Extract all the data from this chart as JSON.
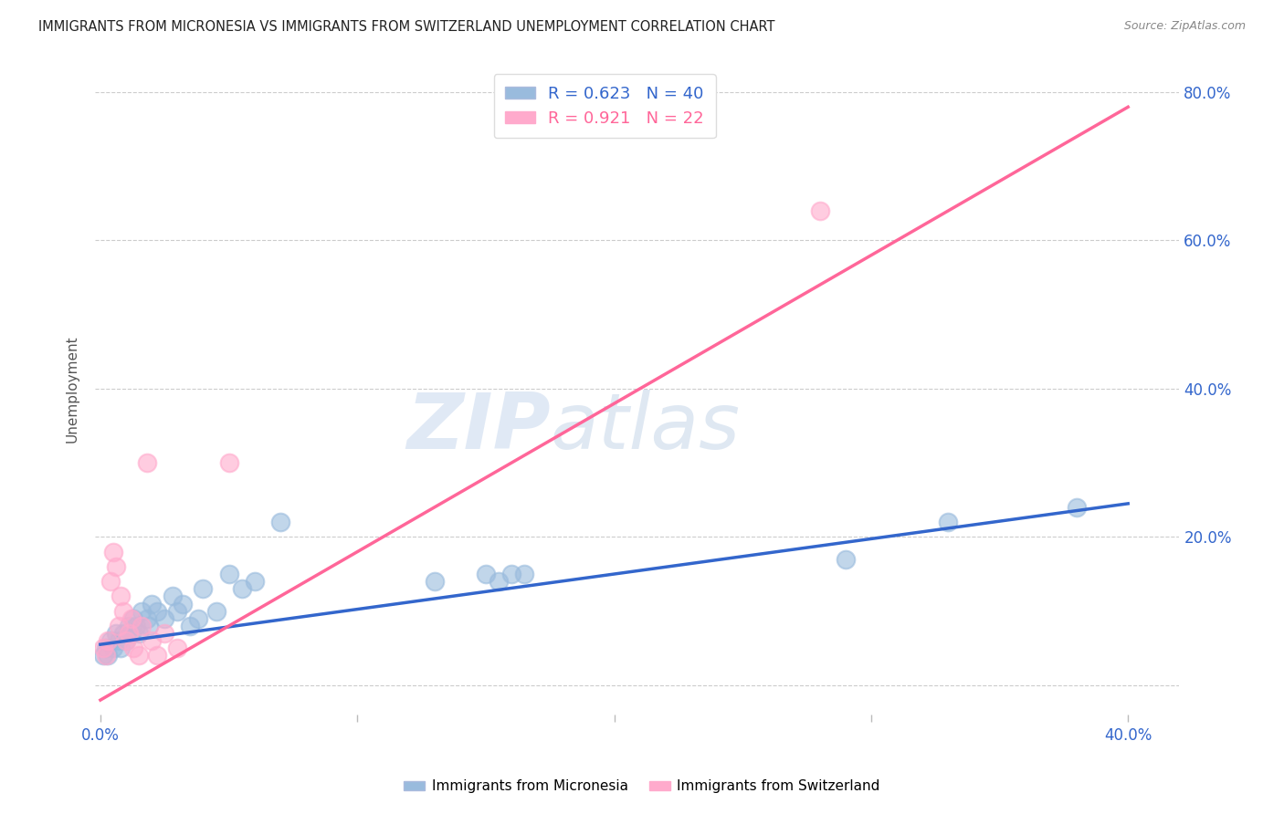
{
  "title": "IMMIGRANTS FROM MICRONESIA VS IMMIGRANTS FROM SWITZERLAND UNEMPLOYMENT CORRELATION CHART",
  "source": "Source: ZipAtlas.com",
  "ylabel": "Unemployment",
  "ytick_positions": [
    0.0,
    0.2,
    0.4,
    0.6,
    0.8
  ],
  "ytick_labels": [
    "",
    "20.0%",
    "40.0%",
    "60.0%",
    "80.0%"
  ],
  "xtick_positions": [
    0.0,
    0.1,
    0.2,
    0.3,
    0.4
  ],
  "xlim": [
    -0.002,
    0.42
  ],
  "ylim": [
    -0.04,
    0.84
  ],
  "micronesia_color": "#99BBDD",
  "switzerland_color": "#FFAACC",
  "micronesia_line_color": "#3366CC",
  "switzerland_line_color": "#FF6699",
  "R_micronesia": 0.623,
  "N_micronesia": 40,
  "R_switzerland": 0.921,
  "N_switzerland": 22,
  "legend_label_micronesia": "Immigrants from Micronesia",
  "legend_label_switzerland": "Immigrants from Switzerland",
  "watermark_zip": "ZIP",
  "watermark_atlas": "atlas",
  "background_color": "#FFFFFF",
  "micronesia_x": [
    0.001,
    0.002,
    0.003,
    0.004,
    0.005,
    0.006,
    0.007,
    0.008,
    0.009,
    0.01,
    0.011,
    0.012,
    0.013,
    0.014,
    0.015,
    0.016,
    0.018,
    0.019,
    0.02,
    0.022,
    0.025,
    0.028,
    0.03,
    0.032,
    0.035,
    0.038,
    0.04,
    0.045,
    0.05,
    0.055,
    0.06,
    0.07,
    0.13,
    0.15,
    0.155,
    0.16,
    0.165,
    0.29,
    0.33,
    0.38
  ],
  "micronesia_y": [
    0.04,
    0.05,
    0.04,
    0.06,
    0.05,
    0.07,
    0.06,
    0.05,
    0.07,
    0.06,
    0.08,
    0.07,
    0.09,
    0.08,
    0.07,
    0.1,
    0.09,
    0.08,
    0.11,
    0.1,
    0.09,
    0.12,
    0.1,
    0.11,
    0.08,
    0.09,
    0.13,
    0.1,
    0.15,
    0.13,
    0.14,
    0.22,
    0.14,
    0.15,
    0.14,
    0.15,
    0.15,
    0.17,
    0.22,
    0.24
  ],
  "switzerland_x": [
    0.001,
    0.002,
    0.003,
    0.004,
    0.005,
    0.006,
    0.007,
    0.008,
    0.009,
    0.01,
    0.011,
    0.012,
    0.013,
    0.015,
    0.016,
    0.018,
    0.02,
    0.022,
    0.025,
    0.03,
    0.05,
    0.28
  ],
  "switzerland_y": [
    0.05,
    0.04,
    0.06,
    0.14,
    0.18,
    0.16,
    0.08,
    0.12,
    0.1,
    0.06,
    0.07,
    0.09,
    0.05,
    0.04,
    0.08,
    0.3,
    0.06,
    0.04,
    0.07,
    0.05,
    0.3,
    0.64
  ],
  "blue_line_x": [
    0.0,
    0.4
  ],
  "blue_line_y": [
    0.055,
    0.245
  ],
  "pink_line_x": [
    0.0,
    0.4
  ],
  "pink_line_y": [
    -0.02,
    0.78
  ]
}
